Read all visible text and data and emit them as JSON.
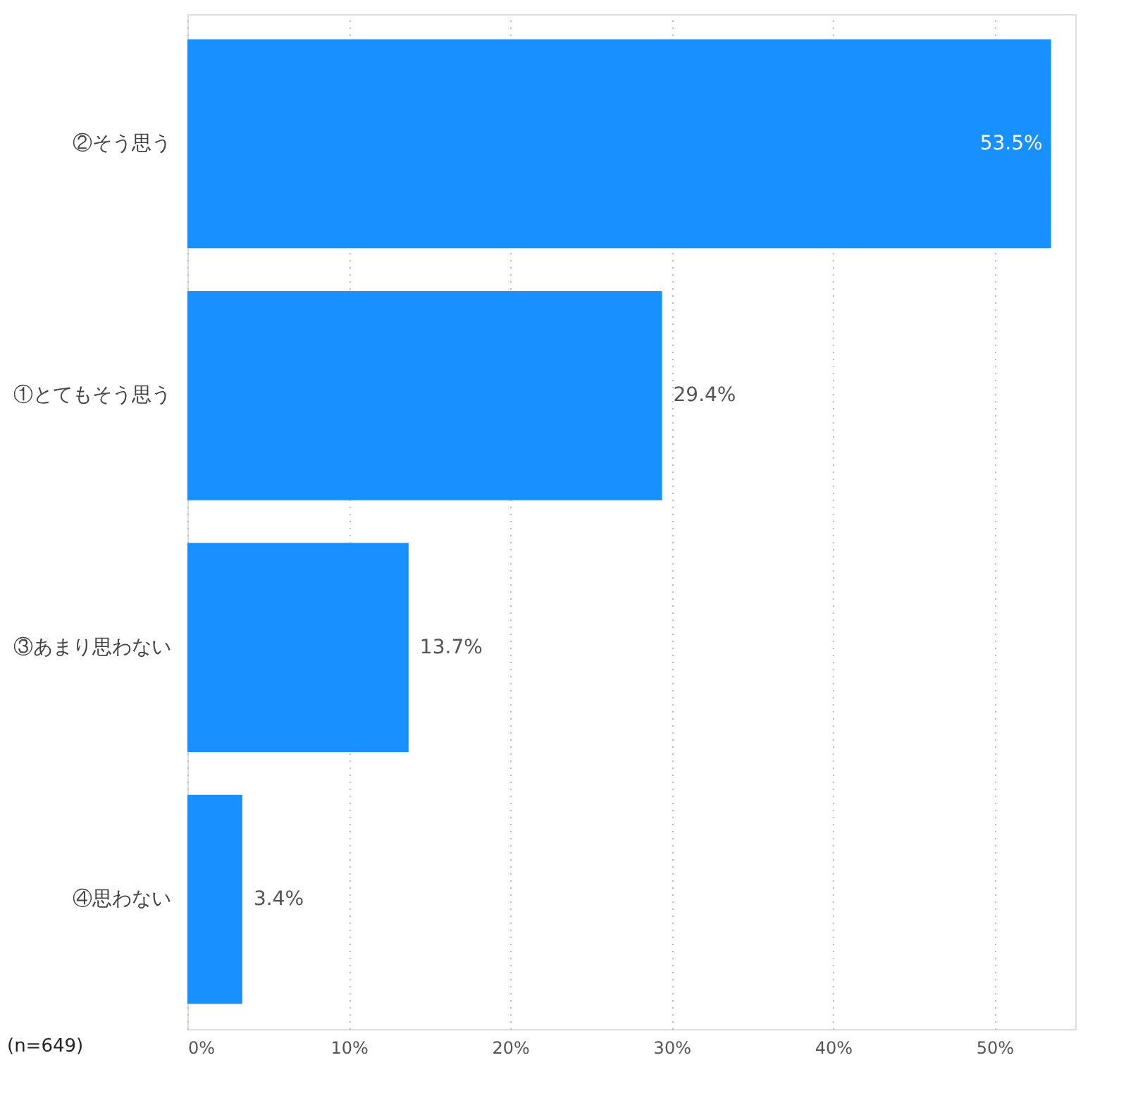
{
  "chart_data": {
    "type": "bar",
    "orientation": "horizontal",
    "categories": [
      "②そう思う",
      "①とてもそう思う",
      "③あまり思わない",
      "④思わない"
    ],
    "values": [
      53.5,
      29.4,
      13.7,
      3.4
    ],
    "value_labels": [
      "53.5%",
      "29.4%",
      "13.7%",
      "3.4%"
    ],
    "color": "#1890ff",
    "xlim": [
      0,
      55
    ],
    "xticks": [
      {
        "value": 0,
        "label": "0%"
      },
      {
        "value": 10,
        "label": "10%"
      },
      {
        "value": 20,
        "label": "20%"
      },
      {
        "value": 30,
        "label": "30%"
      },
      {
        "value": 40,
        "label": "40%"
      },
      {
        "value": 50,
        "label": "50%"
      }
    ],
    "grid": "x",
    "annotations": [
      "(n=649)"
    ]
  }
}
